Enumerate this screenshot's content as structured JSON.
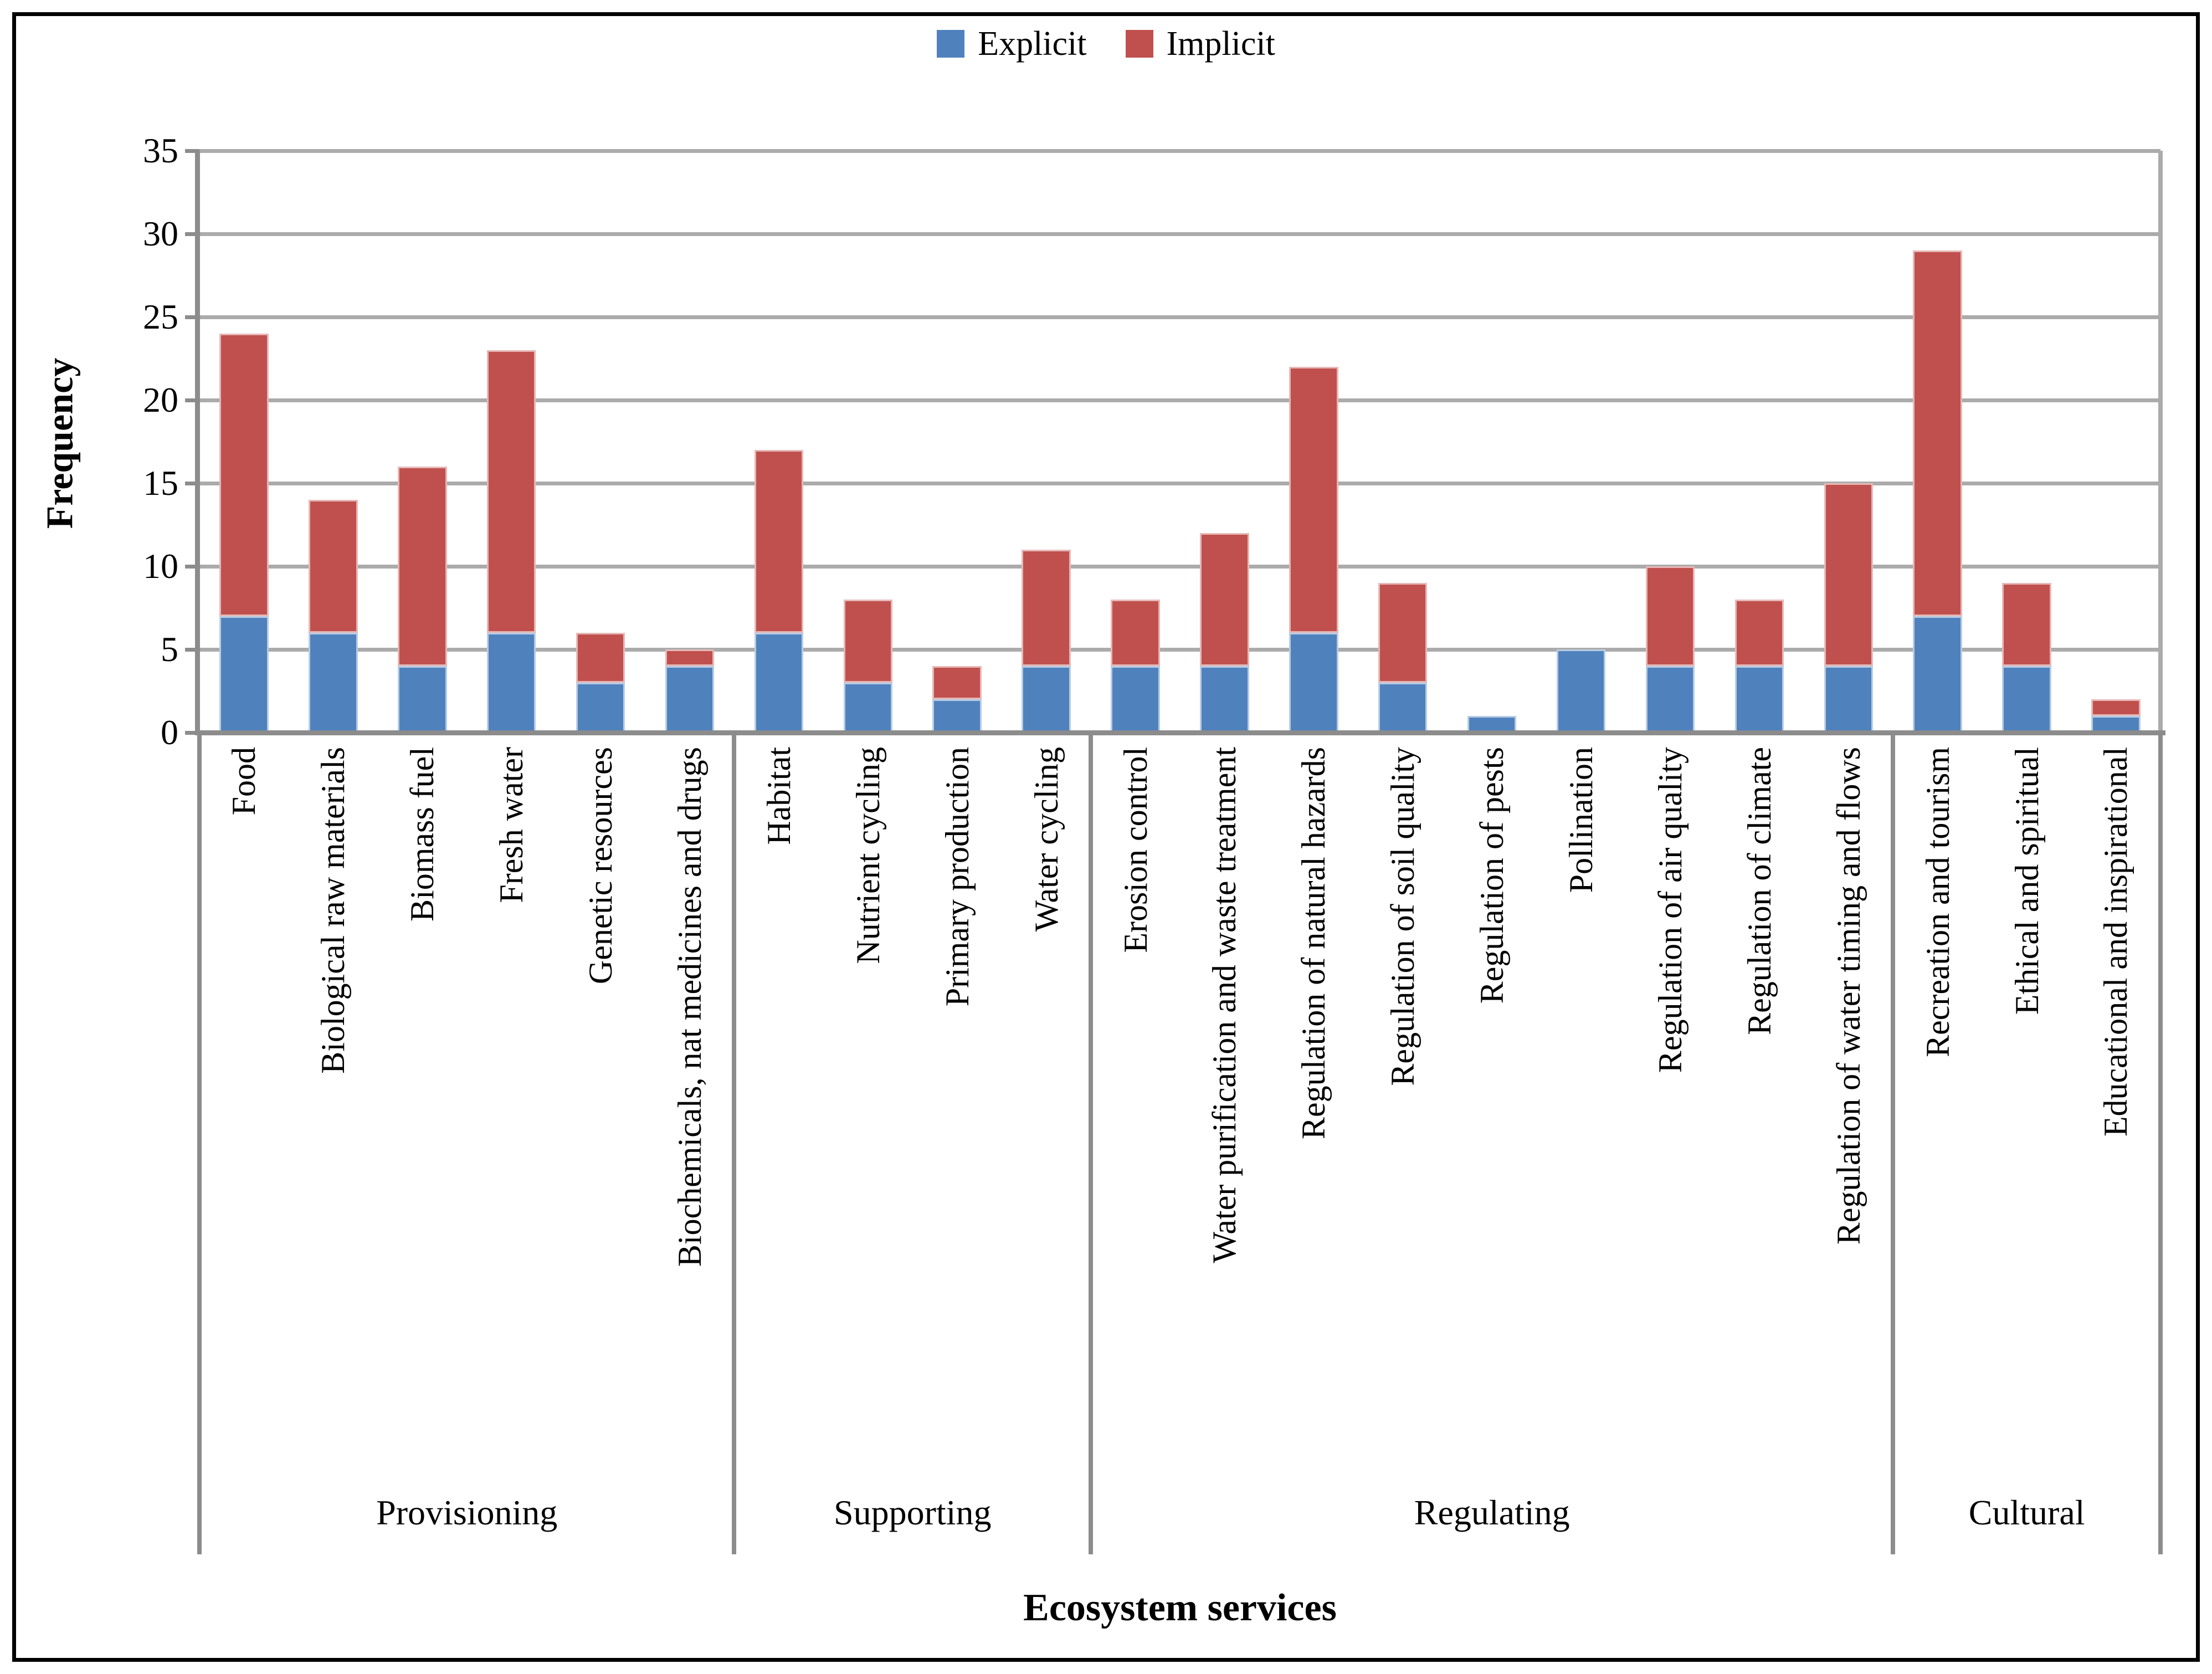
{
  "page": {
    "background": "#FFFFFF",
    "frame_color": "#000000"
  },
  "chart_data": {
    "type": "bar",
    "stacked": true,
    "title": "",
    "xlabel": "Ecosystem services",
    "ylabel": "Frequency",
    "ylim": [
      0,
      35
    ],
    "ytick_step": 5,
    "yticks": [
      0,
      5,
      10,
      15,
      20,
      25,
      30,
      35
    ],
    "grid": true,
    "legend_position": "top-center",
    "legend": [
      {
        "name": "Explicit",
        "color": "#4F81BD",
        "border_color": "#B8CCE4"
      },
      {
        "name": "Implicit",
        "color": "#C0504D",
        "border_color": "#E6B8B7"
      }
    ],
    "colors": {
      "gridline": "#ABABAB",
      "axis": "#8C8C8C"
    },
    "groups": [
      {
        "name": "Provisioning",
        "items": [
          {
            "label": "Food",
            "explicit": 7,
            "implicit": 17,
            "total": 24
          },
          {
            "label": "Biological raw materials",
            "explicit": 6,
            "implicit": 8,
            "total": 14
          },
          {
            "label": "Biomass fuel",
            "explicit": 4,
            "implicit": 12,
            "total": 16
          },
          {
            "label": "Fresh water",
            "explicit": 6,
            "implicit": 17,
            "total": 23
          },
          {
            "label": "Genetic resources",
            "explicit": 3,
            "implicit": 3,
            "total": 6
          },
          {
            "label": "Biochemicals, nat medicines and drugs",
            "explicit": 4,
            "implicit": 1,
            "total": 5
          }
        ]
      },
      {
        "name": "Supporting",
        "items": [
          {
            "label": "Habitat",
            "explicit": 6,
            "implicit": 11,
            "total": 17
          },
          {
            "label": "Nutrient cycling",
            "explicit": 3,
            "implicit": 5,
            "total": 8
          },
          {
            "label": "Primary production",
            "explicit": 2,
            "implicit": 2,
            "total": 4
          },
          {
            "label": "Water cycling",
            "explicit": 4,
            "implicit": 7,
            "total": 11
          }
        ]
      },
      {
        "name": "Regulating",
        "items": [
          {
            "label": "Erosion control",
            "explicit": 4,
            "implicit": 4,
            "total": 8
          },
          {
            "label": "Water purification and waste treatment",
            "explicit": 4,
            "implicit": 8,
            "total": 12
          },
          {
            "label": "Regulation of natural hazards",
            "explicit": 6,
            "implicit": 16,
            "total": 22
          },
          {
            "label": "Regulation of soil quality",
            "explicit": 3,
            "implicit": 6,
            "total": 9
          },
          {
            "label": "Regulation of pests",
            "explicit": 1,
            "implicit": 0,
            "total": 1
          },
          {
            "label": "Pollination",
            "explicit": 5,
            "implicit": 0,
            "total": 5
          },
          {
            "label": "Regulation of air quality",
            "explicit": 4,
            "implicit": 6,
            "total": 10
          },
          {
            "label": "Regulation of climate",
            "explicit": 4,
            "implicit": 4,
            "total": 8
          },
          {
            "label": "Regulation of water timing and flows",
            "explicit": 4,
            "implicit": 11,
            "total": 15
          }
        ]
      },
      {
        "name": "Cultural",
        "items": [
          {
            "label": "Recreation and tourism",
            "explicit": 7,
            "implicit": 22,
            "total": 29
          },
          {
            "label": "Ethical and spiritual",
            "explicit": 4,
            "implicit": 5,
            "total": 9
          },
          {
            "label": "Educational and inspirational",
            "explicit": 1,
            "implicit": 1,
            "total": 2
          }
        ]
      }
    ]
  }
}
